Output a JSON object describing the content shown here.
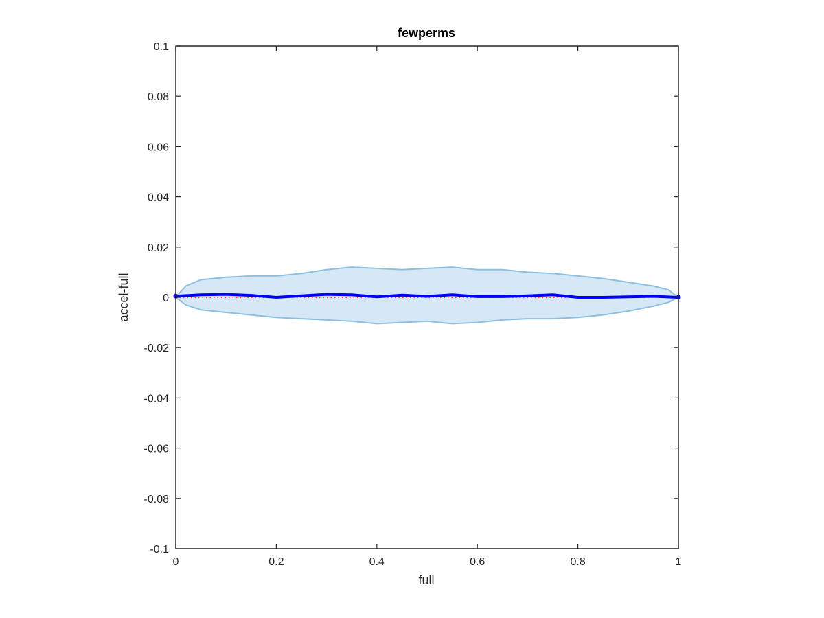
{
  "chart_data": {
    "type": "line",
    "title": "fewperms",
    "xlabel": "full",
    "ylabel": "accel-full",
    "xlim": [
      0,
      1
    ],
    "ylim": [
      -0.1,
      0.1
    ],
    "x_ticks": [
      0,
      0.2,
      0.4,
      0.6,
      0.8,
      1
    ],
    "x_tick_labels": [
      "0",
      "0.2",
      "0.4",
      "0.6",
      "0.8",
      "1"
    ],
    "y_ticks": [
      0.1,
      0.08,
      0.06,
      0.04,
      0.02,
      0,
      -0.02,
      -0.04,
      -0.06,
      -0.08,
      -0.1
    ],
    "y_tick_labels": [
      "0.1",
      "0.08",
      "0.06",
      "0.04",
      "0.02",
      "0",
      "-0.02",
      "-0.04",
      "-0.06",
      "-0.08",
      "-0.1"
    ],
    "grid": false,
    "band": {
      "x": [
        0,
        0.02,
        0.05,
        0.1,
        0.15,
        0.2,
        0.25,
        0.3,
        0.35,
        0.4,
        0.45,
        0.5,
        0.55,
        0.6,
        0.65,
        0.7,
        0.75,
        0.8,
        0.85,
        0.9,
        0.95,
        0.98,
        1
      ],
      "upper": [
        0,
        0.0045,
        0.007,
        0.008,
        0.0085,
        0.0085,
        0.0095,
        0.011,
        0.012,
        0.0115,
        0.011,
        0.0115,
        0.012,
        0.011,
        0.011,
        0.01,
        0.0095,
        0.0085,
        0.0075,
        0.006,
        0.0045,
        0.003,
        0
      ],
      "lower": [
        0,
        -0.003,
        -0.005,
        -0.006,
        -0.007,
        -0.008,
        -0.0085,
        -0.009,
        -0.0095,
        -0.0105,
        -0.01,
        -0.0095,
        -0.0105,
        -0.01,
        -0.009,
        -0.0085,
        -0.0085,
        -0.008,
        -0.007,
        -0.0055,
        -0.0035,
        -0.002,
        0
      ],
      "fill_color": "#d6e8f5",
      "edge_color": "#8dbfe0"
    },
    "series": [
      {
        "x": [
          0,
          0.05,
          0.1,
          0.15,
          0.2,
          0.25,
          0.3,
          0.35,
          0.4,
          0.45,
          0.5,
          0.55,
          0.6,
          0.65,
          0.7,
          0.75,
          0.8,
          0.85,
          0.9,
          0.95,
          1
        ],
        "values": [
          0.0005,
          0.001,
          0.0012,
          0.0008,
          0.0,
          0.0006,
          0.0012,
          0.001,
          0.0002,
          0.0009,
          0.0004,
          0.001,
          0.0003,
          0.0003,
          0.0006,
          0.001,
          0.0,
          0.0,
          0.0002,
          0.0004,
          0.0
        ],
        "color": "#0000ff"
      }
    ],
    "reference_line": {
      "y": 0,
      "color": "#ff0000",
      "style": "dotted"
    }
  }
}
